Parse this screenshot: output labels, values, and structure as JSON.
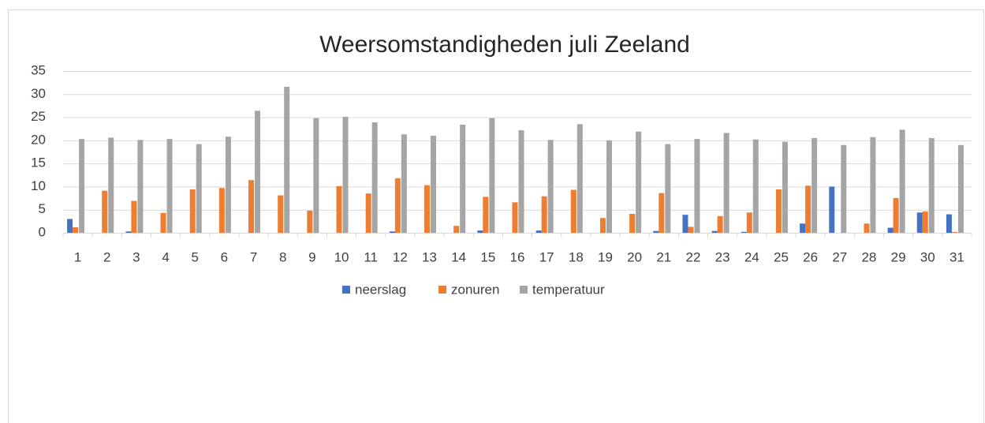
{
  "chart_data": {
    "type": "bar",
    "title": "Weersomstandigheden juli Zeeland",
    "categories": [
      "1",
      "2",
      "3",
      "4",
      "5",
      "6",
      "7",
      "8",
      "9",
      "10",
      "11",
      "12",
      "13",
      "14",
      "15",
      "16",
      "17",
      "18",
      "19",
      "20",
      "21",
      "22",
      "23",
      "24",
      "25",
      "26",
      "27",
      "28",
      "29",
      "30",
      "31"
    ],
    "series": [
      {
        "name": "neerslag",
        "color": "#4472c4",
        "values": [
          3,
          0,
          0.3,
          0,
          0,
          0,
          0,
          0,
          0,
          0,
          0,
          0.3,
          0,
          0,
          0.5,
          0,
          0.5,
          0,
          0,
          0,
          0.4,
          3.9,
          0.4,
          0.2,
          0,
          2,
          10,
          0,
          1.1,
          4.4,
          4
        ]
      },
      {
        "name": "zonuren",
        "color": "#ed7d31",
        "values": [
          1.2,
          9.1,
          6.9,
          4.3,
          9.4,
          9.7,
          11.4,
          8.1,
          4.8,
          10.1,
          8.5,
          11.8,
          10.3,
          1.5,
          7.8,
          6.6,
          7.9,
          9.3,
          3.2,
          4.1,
          8.6,
          1.3,
          3.6,
          4.4,
          9.4,
          10.2,
          0,
          2,
          7.5,
          4.6,
          0.2
        ]
      },
      {
        "name": "temperatuur",
        "color": "#a5a5a5",
        "values": [
          20.3,
          20.6,
          20.1,
          20.3,
          19.2,
          20.8,
          26.4,
          31.6,
          24.8,
          25.1,
          23.9,
          21.3,
          21,
          23.4,
          24.8,
          22.2,
          20.1,
          23.5,
          20,
          21.9,
          19.2,
          20.3,
          21.6,
          20.2,
          19.7,
          20.5,
          19,
          20.7,
          22.3,
          20.5,
          19
        ]
      }
    ],
    "ylim": [
      0,
      35
    ],
    "yticks": [
      0,
      5,
      10,
      15,
      20,
      25,
      30,
      35
    ],
    "grid": true,
    "legend": "bottom"
  }
}
